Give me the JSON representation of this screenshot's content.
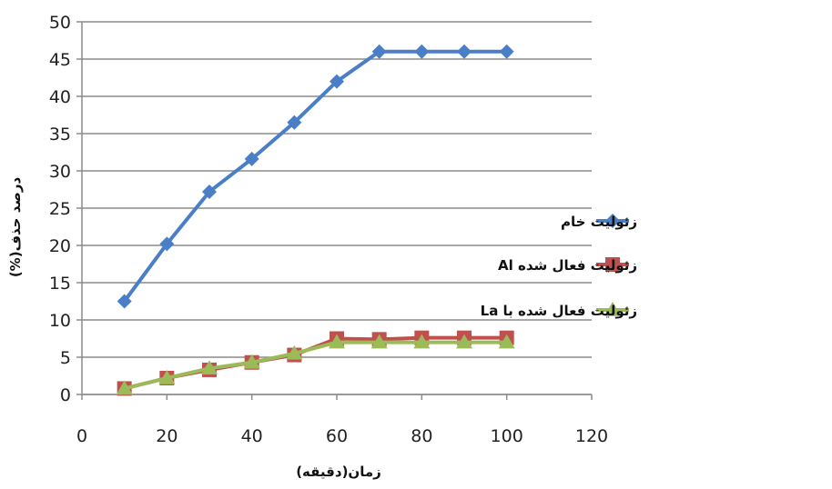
{
  "chart_data": {
    "type": "line",
    "title": "",
    "xlabel": "زمان(دقیقه)",
    "ylabel": "درصد حذف(%)",
    "xlim": [
      0,
      120
    ],
    "ylim": [
      0,
      50
    ],
    "x_ticks": [
      "0",
      "20",
      "40",
      "60",
      "80",
      "100",
      "120"
    ],
    "y_ticks": [
      "0",
      "5",
      "10",
      "15",
      "20",
      "25",
      "30",
      "35",
      "40",
      "45",
      "50"
    ],
    "grid": "horizontal",
    "legend_position": "right",
    "x": [
      10,
      20,
      30,
      40,
      50,
      60,
      70,
      80,
      90,
      100
    ],
    "series": [
      {
        "name": "زئولیت خام",
        "color": "#4a7fc8",
        "marker": "diamond",
        "values": [
          12.5,
          20.2,
          27.2,
          31.6,
          36.5,
          42.0,
          46.0,
          46.0,
          46.0,
          46.0
        ]
      },
      {
        "name": "زئولیت فعال شده Al",
        "color": "#c0504d",
        "marker": "square",
        "values": [
          0.8,
          2.2,
          3.3,
          4.3,
          5.3,
          7.5,
          7.4,
          7.6,
          7.6,
          7.6
        ]
      },
      {
        "name": "زئولیت فعال شده با La",
        "color": "#9bbb59",
        "marker": "triangle",
        "values": [
          0.8,
          2.2,
          3.5,
          4.3,
          5.5,
          7.0,
          7.0,
          7.0,
          7.0,
          7.0
        ]
      }
    ]
  }
}
